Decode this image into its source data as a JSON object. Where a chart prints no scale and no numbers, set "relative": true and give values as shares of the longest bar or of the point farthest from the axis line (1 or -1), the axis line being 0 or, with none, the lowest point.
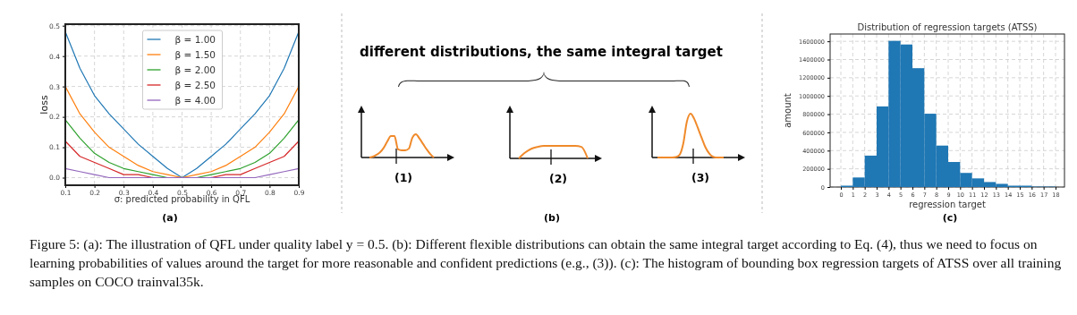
{
  "chart_data": [
    {
      "type": "line",
      "xlabel": "σ: predicted probability in QFL",
      "ylabel": "loss",
      "x": [
        0.1,
        0.15,
        0.2,
        0.25,
        0.3,
        0.35,
        0.4,
        0.45,
        0.5,
        0.55,
        0.6,
        0.65,
        0.7,
        0.75,
        0.8,
        0.85,
        0.9
      ],
      "series": [
        {
          "name": "β = 1.00",
          "color": "#1f77b4",
          "values": [
            0.48,
            0.36,
            0.27,
            0.21,
            0.16,
            0.11,
            0.07,
            0.03,
            0,
            0.03,
            0.07,
            0.11,
            0.16,
            0.21,
            0.27,
            0.36,
            0.48
          ]
        },
        {
          "name": "β = 1.50",
          "color": "#ff7f0e",
          "values": [
            0.3,
            0.21,
            0.15,
            0.1,
            0.07,
            0.04,
            0.02,
            0.01,
            0,
            0.01,
            0.02,
            0.04,
            0.07,
            0.1,
            0.15,
            0.21,
            0.3
          ]
        },
        {
          "name": "β = 2.00",
          "color": "#2ca02c",
          "values": [
            0.19,
            0.13,
            0.08,
            0.05,
            0.03,
            0.02,
            0.01,
            0,
            0,
            0,
            0.01,
            0.02,
            0.03,
            0.05,
            0.08,
            0.13,
            0.19
          ]
        },
        {
          "name": "β = 2.50",
          "color": "#d62728",
          "values": [
            0.12,
            0.07,
            0.05,
            0.03,
            0.01,
            0.01,
            0,
            0,
            0,
            0,
            0,
            0.01,
            0.01,
            0.03,
            0.05,
            0.07,
            0.12
          ]
        },
        {
          "name": "β = 4.00",
          "color": "#9467bd",
          "values": [
            0.03,
            0.02,
            0.01,
            0,
            0,
            0,
            0,
            0,
            0,
            0,
            0,
            0,
            0,
            0,
            0.01,
            0.02,
            0.03
          ]
        }
      ],
      "xlim": [
        0.1,
        0.9
      ],
      "xticks": [
        0.1,
        0.2,
        0.3,
        0.4,
        0.5,
        0.6,
        0.7,
        0.8,
        0.9
      ],
      "ylim": [
        -0.025,
        0.505
      ],
      "yticks": [
        {
          "value": 0,
          "label": "0.0"
        },
        0.1,
        0.2,
        0.3,
        0.4,
        0.5
      ],
      "grid": true,
      "legend": "top",
      "line_style": "solid",
      "annotations": [
        "(a)"
      ]
    },
    {
      "type": "other",
      "title": "different distributions, the same integral target",
      "annotations": [
        "(b)",
        "Figure 5: (a): The illustration of QFL under quality label y = 0.5. (b): Different flexible distributions can obtain the same integral target according to Eq. (4), thus we need to focus on learning probabilities of values around the target for more reasonable and confident predictions (e.g., (3)). (c): The histogram of bounding box regression targets of ATSS over all training samples on COCO trainval35k."
      ]
    },
    {
      "type": "line",
      "relative": true,
      "xlabel": "(1)",
      "categories": [
        null,
        null,
        null,
        null,
        null,
        null,
        null,
        null,
        null,
        null,
        null,
        null,
        null,
        null,
        null,
        null,
        null,
        null,
        null
      ],
      "series": [
        {
          "color": "#f08a2b",
          "values": [
            0,
            0.04,
            0.12,
            0.23,
            0.42,
            0.69,
            0.92,
            0.92,
            0.35,
            0.31,
            0.31,
            0.38,
            0.85,
            1,
            0.81,
            0.58,
            0.35,
            0.15,
            0
          ]
        }
      ]
    },
    {
      "type": "line",
      "relative": true,
      "xlabel": "(2)",
      "categories": [
        null,
        null,
        null,
        null,
        null,
        null,
        null,
        null,
        null,
        null,
        null,
        null
      ],
      "series": [
        {
          "color": "#f08a2b",
          "values": [
            0,
            0.46,
            0.77,
            0.92,
            1,
            1,
            1,
            1,
            1,
            1,
            0.92,
            0
          ]
        }
      ]
    },
    {
      "type": "line",
      "relative": true,
      "xlabel": "(3)",
      "categories": [
        null,
        null,
        null,
        null,
        null,
        null,
        null,
        null,
        null,
        null,
        null,
        null,
        null,
        null,
        null,
        null,
        null,
        null,
        null
      ],
      "series": [
        {
          "color": "#f08a2b",
          "values": [
            0,
            0,
            0,
            0,
            0,
            0.01,
            0.06,
            0.31,
            0.82,
            1,
            0.88,
            0.67,
            0.45,
            0.24,
            0.1,
            0.02,
            0,
            0,
            0
          ]
        }
      ]
    },
    {
      "type": "histogram",
      "title": "Distribution of regression targets (ATSS)",
      "xlabel": "regression target",
      "ylabel": "amount",
      "bins": [
        0,
        1,
        2,
        3,
        4,
        5,
        6,
        7,
        8,
        9,
        10,
        11,
        12,
        13,
        14,
        15,
        16,
        17,
        18
      ],
      "values": [
        10000,
        100000,
        340000,
        880000,
        1600000,
        1560000,
        1300000,
        800000,
        450000,
        270000,
        150000,
        90000,
        50000,
        30000,
        10000,
        10000,
        0,
        0
      ],
      "color": "#1f77b4",
      "xlim": [
        -0.9,
        18.75
      ],
      "xticks": [
        0,
        1,
        2,
        3,
        4,
        5,
        6,
        7,
        8,
        9,
        10,
        11,
        12,
        13,
        14,
        15,
        16,
        17,
        18
      ],
      "ylim": [
        0,
        1680000
      ],
      "yticks": [
        0,
        200000,
        400000,
        600000,
        800000,
        1000000,
        1200000,
        1400000,
        1600000
      ],
      "grid": true,
      "annotations": [
        "(c)"
      ]
    }
  ]
}
